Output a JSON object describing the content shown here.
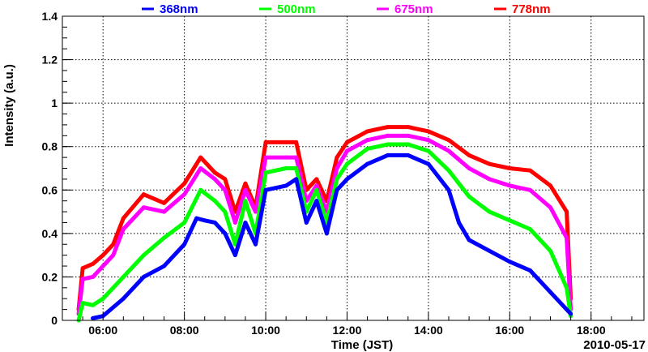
{
  "chart_data": {
    "type": "scatter",
    "title": "",
    "xlabel": "Time (JST)",
    "ylabel": "Intensity (a.u.)",
    "date_label": "2010-05-17",
    "xlim": [
      5.0,
      19.3
    ],
    "ylim": [
      0,
      1.4
    ],
    "grid": true,
    "legend_position": "top",
    "x_ticks": [
      {
        "value": 6,
        "label": "06:00"
      },
      {
        "value": 8,
        "label": "08:00"
      },
      {
        "value": 10,
        "label": "10:00"
      },
      {
        "value": 12,
        "label": "12:00"
      },
      {
        "value": 14,
        "label": "14:00"
      },
      {
        "value": 16,
        "label": "16:00"
      },
      {
        "value": 18,
        "label": "18:00"
      }
    ],
    "y_ticks": [
      {
        "value": 0,
        "label": "0"
      },
      {
        "value": 0.2,
        "label": "0.2"
      },
      {
        "value": 0.4,
        "label": "0.4"
      },
      {
        "value": 0.6,
        "label": "0.6"
      },
      {
        "value": 0.8,
        "label": "0.8"
      },
      {
        "value": 1.0,
        "label": "1"
      },
      {
        "value": 1.2,
        "label": "1.2"
      },
      {
        "value": 1.4,
        "label": "1.4"
      }
    ],
    "series": [
      {
        "name": "778nm",
        "color": "#ff0000",
        "x": [
          5.4,
          5.5,
          5.75,
          6.0,
          6.25,
          6.5,
          7.0,
          7.5,
          8.0,
          8.4,
          8.75,
          9.0,
          9.25,
          9.5,
          9.75,
          10.0,
          10.5,
          10.75,
          11.0,
          11.25,
          11.5,
          11.75,
          12.0,
          12.5,
          13.0,
          13.5,
          14.0,
          14.5,
          15.0,
          15.5,
          16.0,
          16.5,
          17.0,
          17.4,
          17.5
        ],
        "y": [
          0.05,
          0.24,
          0.26,
          0.3,
          0.35,
          0.47,
          0.58,
          0.54,
          0.63,
          0.75,
          0.68,
          0.65,
          0.5,
          0.63,
          0.52,
          0.82,
          0.82,
          0.82,
          0.6,
          0.65,
          0.55,
          0.75,
          0.82,
          0.87,
          0.89,
          0.89,
          0.87,
          0.83,
          0.76,
          0.72,
          0.7,
          0.69,
          0.62,
          0.5,
          0.1
        ]
      },
      {
        "name": "675nm",
        "color": "#ff00ff",
        "x": [
          5.4,
          5.5,
          5.75,
          6.0,
          6.25,
          6.5,
          7.0,
          7.5,
          8.0,
          8.4,
          8.75,
          9.0,
          9.25,
          9.5,
          9.75,
          10.0,
          10.5,
          10.75,
          11.0,
          11.25,
          11.5,
          11.75,
          12.0,
          12.5,
          13.0,
          13.5,
          14.0,
          14.5,
          15.0,
          15.5,
          16.0,
          16.5,
          17.0,
          17.4,
          17.5
        ],
        "y": [
          0.03,
          0.19,
          0.2,
          0.25,
          0.3,
          0.42,
          0.52,
          0.5,
          0.58,
          0.7,
          0.65,
          0.6,
          0.45,
          0.6,
          0.5,
          0.75,
          0.75,
          0.75,
          0.55,
          0.62,
          0.5,
          0.7,
          0.78,
          0.83,
          0.85,
          0.85,
          0.83,
          0.78,
          0.7,
          0.65,
          0.62,
          0.6,
          0.52,
          0.38,
          0.05
        ]
      },
      {
        "name": "500nm",
        "color": "#00ff00",
        "x": [
          5.4,
          5.5,
          5.75,
          6.0,
          6.25,
          6.5,
          7.0,
          7.5,
          8.0,
          8.4,
          8.75,
          9.0,
          9.25,
          9.5,
          9.75,
          10.0,
          10.5,
          10.75,
          11.0,
          11.25,
          11.5,
          11.75,
          12.0,
          12.5,
          13.0,
          13.5,
          14.0,
          14.5,
          15.0,
          15.5,
          16.0,
          16.5,
          17.0,
          17.4,
          17.5
        ],
        "y": [
          0.0,
          0.08,
          0.07,
          0.1,
          0.15,
          0.2,
          0.3,
          0.38,
          0.45,
          0.6,
          0.55,
          0.5,
          0.35,
          0.55,
          0.4,
          0.68,
          0.7,
          0.7,
          0.5,
          0.6,
          0.45,
          0.65,
          0.72,
          0.79,
          0.81,
          0.81,
          0.78,
          0.69,
          0.57,
          0.5,
          0.46,
          0.42,
          0.32,
          0.15,
          0.02
        ]
      },
      {
        "name": "368nm",
        "color": "#0000ff",
        "x": [
          5.75,
          6.0,
          6.5,
          7.0,
          7.5,
          8.0,
          8.3,
          8.5,
          8.75,
          9.0,
          9.25,
          9.5,
          9.75,
          10.0,
          10.5,
          10.75,
          11.0,
          11.25,
          11.5,
          11.75,
          12.0,
          12.5,
          13.0,
          13.5,
          14.0,
          14.5,
          14.75,
          15.0,
          15.5,
          16.0,
          16.5,
          17.0,
          17.5
        ],
        "y": [
          0.01,
          0.02,
          0.1,
          0.2,
          0.25,
          0.35,
          0.47,
          0.46,
          0.45,
          0.4,
          0.3,
          0.45,
          0.35,
          0.6,
          0.62,
          0.65,
          0.45,
          0.55,
          0.4,
          0.6,
          0.65,
          0.72,
          0.76,
          0.76,
          0.72,
          0.6,
          0.45,
          0.37,
          0.32,
          0.27,
          0.23,
          0.13,
          0.03
        ]
      }
    ],
    "legend": [
      {
        "label": "368nm",
        "color": "#0000ff"
      },
      {
        "label": "500nm",
        "color": "#00ff00"
      },
      {
        "label": "675nm",
        "color": "#ff00ff"
      },
      {
        "label": "778nm",
        "color": "#ff0000"
      }
    ]
  }
}
